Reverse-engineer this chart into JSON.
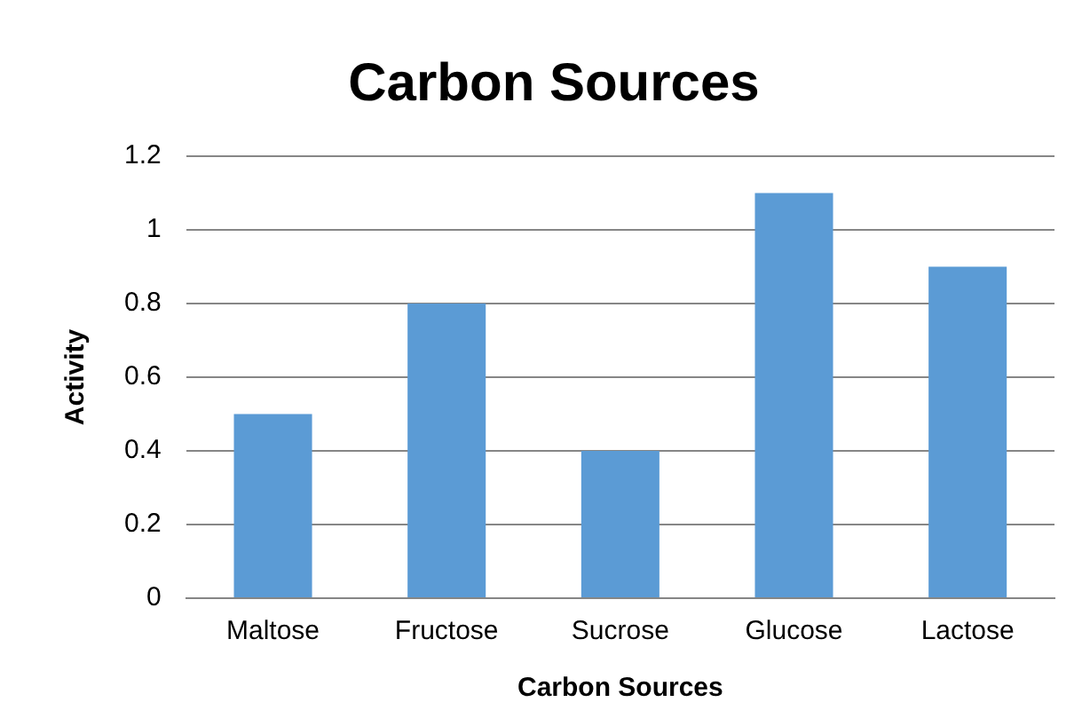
{
  "chart_data": {
    "type": "bar",
    "title": "Carbon Sources",
    "xlabel": "Carbon Sources",
    "ylabel": "Activity",
    "categories": [
      "Maltose",
      "Fructose",
      "Sucrose",
      "Glucose",
      "Lactose"
    ],
    "values": [
      0.5,
      0.8,
      0.4,
      1.1,
      0.9
    ],
    "color": "#5b9bd5",
    "ylim": [
      0,
      1.2
    ],
    "yticks": [
      0,
      0.2,
      0.4,
      0.6,
      0.8,
      1,
      1.2
    ],
    "grid": "y",
    "legend": false
  }
}
